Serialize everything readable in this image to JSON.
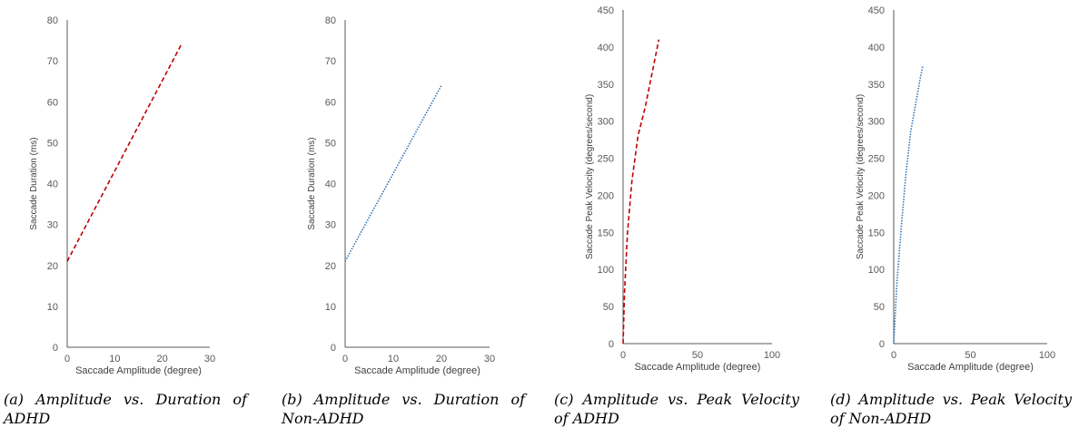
{
  "charts": [
    {
      "caption": {
        "label": "(a)",
        "text": "Amplitude vs. Duration of ADHD"
      },
      "chart_data": {
        "type": "line",
        "xlabel": "Saccade Amplitude (degree)",
        "ylabel": "Saccade Duration (ms)",
        "xlim": [
          0,
          30
        ],
        "ylim": [
          0,
          80
        ],
        "xticks": [
          0,
          10,
          20,
          30
        ],
        "yticks": [
          0,
          10,
          20,
          30,
          40,
          50,
          60,
          70,
          80
        ],
        "grid": false,
        "series": [
          {
            "x": [
              0,
              24
            ],
            "y": [
              21,
              74
            ],
            "color": "#C00000",
            "style": "dashed"
          }
        ]
      }
    },
    {
      "caption": {
        "label": "(b)",
        "text": "Amplitude vs. Duration of Non-ADHD"
      },
      "chart_data": {
        "type": "line",
        "xlabel": "Saccade Amplitude (degree)",
        "ylabel": "Saccade Duration (ms)",
        "xlim": [
          0,
          30
        ],
        "ylim": [
          0,
          80
        ],
        "xticks": [
          0,
          10,
          20,
          30
        ],
        "yticks": [
          0,
          10,
          20,
          30,
          40,
          50,
          60,
          70,
          80
        ],
        "grid": false,
        "series": [
          {
            "x": [
              0,
              20
            ],
            "y": [
              21,
              64
            ],
            "color": "#2E75B6",
            "style": "dotted"
          }
        ]
      }
    },
    {
      "caption": {
        "label": "(c)",
        "text": "Amplitude vs. Peak Velocity of ADHD"
      },
      "chart_data": {
        "type": "line",
        "xlabel": "Saccade Amplitude (degree)",
        "ylabel": "Saccade Peak Velocity (degrees/second)",
        "xlim": [
          0,
          100
        ],
        "ylim": [
          0,
          450
        ],
        "xticks": [
          0,
          50,
          100
        ],
        "yticks": [
          0,
          50,
          100,
          150,
          200,
          250,
          300,
          350,
          400,
          450
        ],
        "grid": false,
        "series": [
          {
            "x": [
              0,
              1,
              3,
              6,
              10,
              15,
              20,
              24
            ],
            "y": [
              0,
              70,
              150,
              220,
              280,
              320,
              370,
              410
            ],
            "color": "#C00000",
            "style": "dashed"
          }
        ]
      }
    },
    {
      "caption": {
        "label": "(d)",
        "text": "Amplitude vs. Peak Velocity of Non-ADHD"
      },
      "chart_data": {
        "type": "line",
        "xlabel": "Saccade Amplitude (degree)",
        "ylabel": "Saccade Peak Velocity (degrees/second)",
        "xlim": [
          0,
          100
        ],
        "ylim": [
          0,
          450
        ],
        "xticks": [
          0,
          50,
          100
        ],
        "yticks": [
          0,
          50,
          100,
          150,
          200,
          250,
          300,
          350,
          400,
          450
        ],
        "grid": false,
        "series": [
          {
            "x": [
              0,
              2,
              5,
              8,
              11,
              14,
              17,
              19
            ],
            "y": [
              0,
              80,
              160,
              230,
              285,
              320,
              355,
              375
            ],
            "color": "#2E75B6",
            "style": "dotted"
          }
        ]
      }
    }
  ]
}
